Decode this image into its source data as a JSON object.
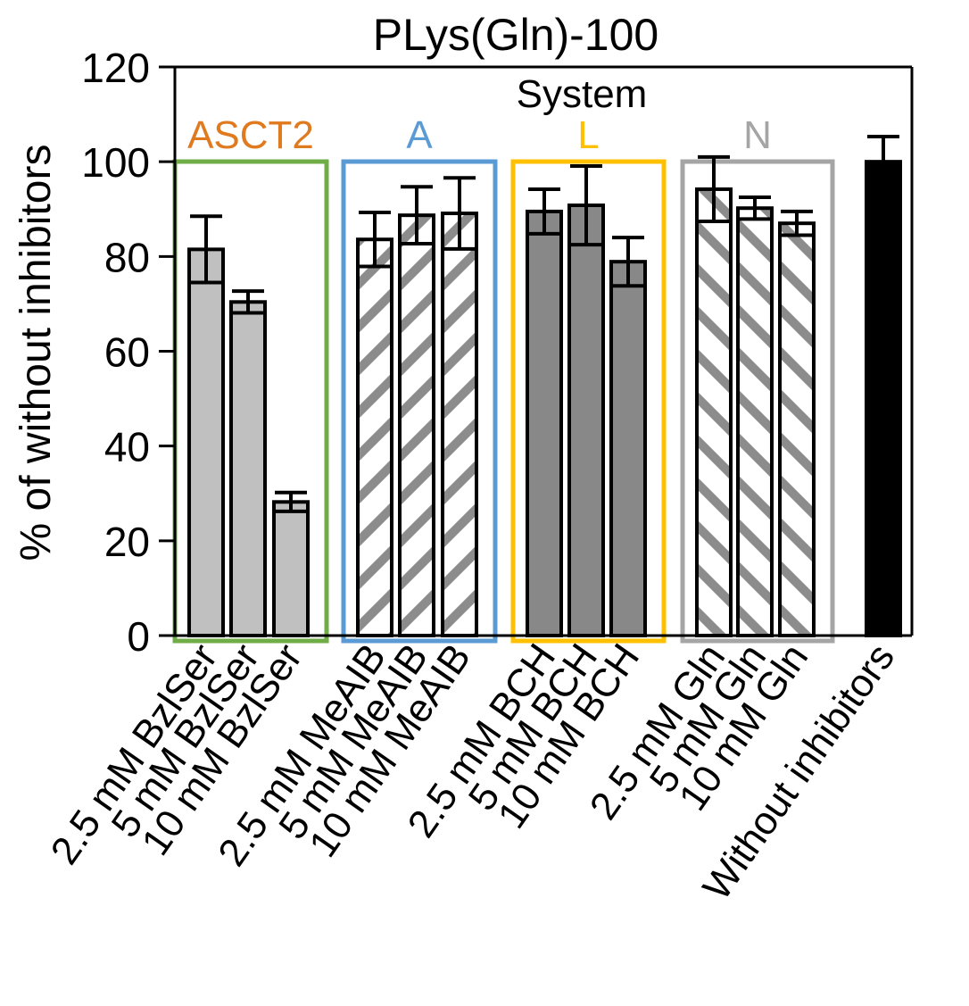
{
  "chart_data": {
    "type": "bar",
    "title": "PLys(Gln)-100",
    "xlabel": "",
    "ylabel": "% of without inhibitors",
    "ylim": [
      0,
      120
    ],
    "yticks": [
      0,
      20,
      40,
      60,
      80,
      100,
      120
    ],
    "grid": false,
    "annotation": "System",
    "categories": [
      "2.5 mM BzlSer",
      "5 mM BzlSer",
      "10 mM BzlSer",
      "2.5 mM MeAIB",
      "5 mM MeAIB",
      "10 mM MeAIB",
      "2.5 mM BCH",
      "5 mM BCH",
      "10 mM BCH",
      "2.5 mM Gln",
      "5 mM Gln",
      "10 mM Gln",
      "Without inhibitors"
    ],
    "values": [
      81.5,
      70.4,
      28.2,
      83.6,
      88.7,
      89.1,
      89.5,
      90.8,
      78.9,
      94.2,
      90.2,
      87.0,
      100.0
    ],
    "errors": [
      7.0,
      2.3,
      2.0,
      5.7,
      6.0,
      7.5,
      4.7,
      8.3,
      5.1,
      6.8,
      2.3,
      2.5,
      5.3
    ],
    "groups": [
      {
        "name": "ASCT2",
        "color": "#E07A1F",
        "box_color": "#70AD47",
        "members": [
          0,
          1,
          2
        ],
        "fill": "light-gray"
      },
      {
        "name": "A",
        "color": "#5B9BD5",
        "box_color": "#5B9BD5",
        "members": [
          3,
          4,
          5
        ],
        "fill": "hatch-forward"
      },
      {
        "name": "L",
        "color": "#FFC000",
        "box_color": "#FFC000",
        "members": [
          6,
          7,
          8
        ],
        "fill": "dark-gray"
      },
      {
        "name": "N",
        "color": "#A5A5A5",
        "box_color": "#A5A5A5",
        "members": [
          9,
          10,
          11
        ],
        "fill": "hatch-back"
      },
      {
        "name": "",
        "color": "#000000",
        "box_color": null,
        "members": [
          12
        ],
        "fill": "black"
      }
    ],
    "fill_colors": {
      "light-gray": "#C0C0C0",
      "dark-gray": "#888888",
      "black": "#000000",
      "hatch": "#8C8C8C"
    }
  }
}
